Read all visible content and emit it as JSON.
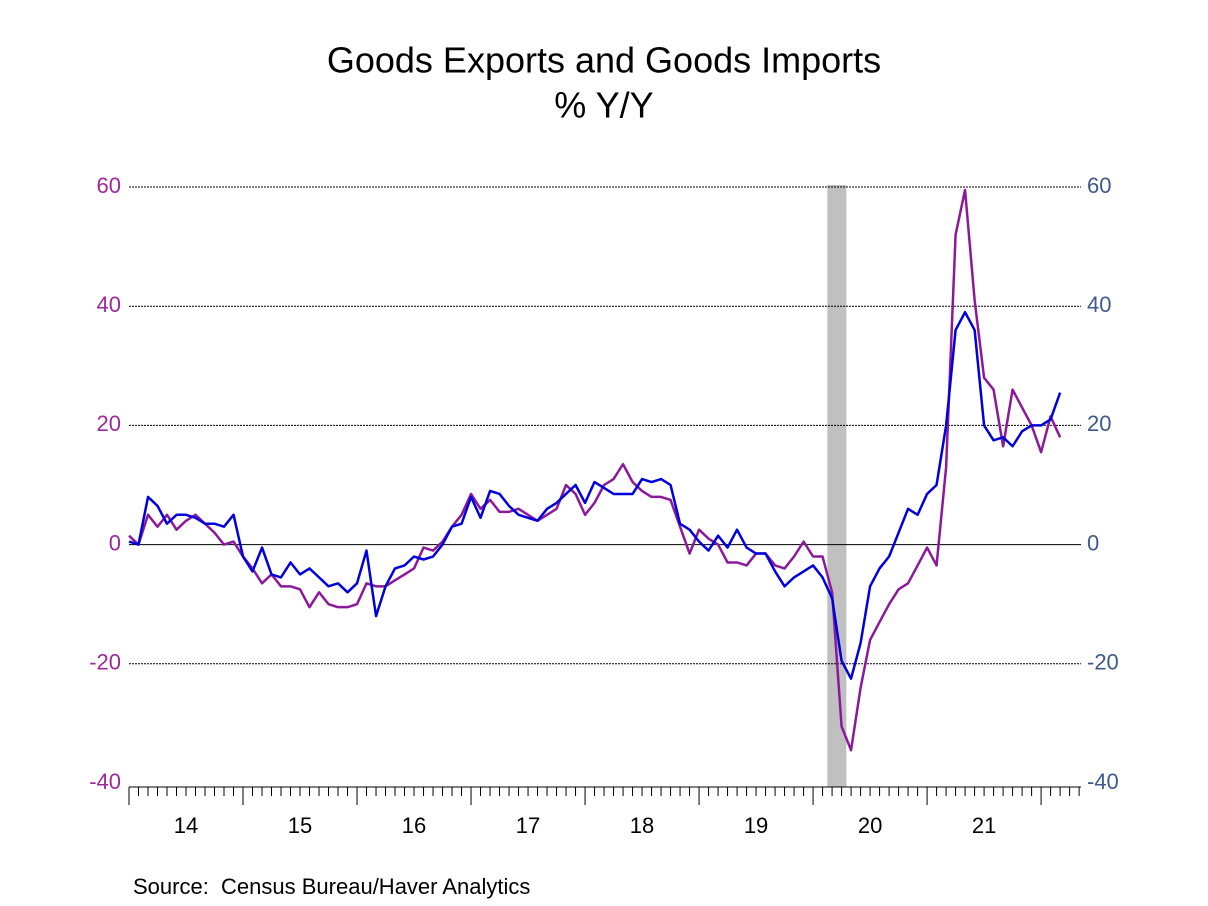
{
  "chart_data": {
    "type": "line",
    "title": "Goods Exports and Goods Imports",
    "subtitle": "% Y/Y",
    "source": "Source:  Census Bureau/Haver Analytics",
    "x": [
      2014.0,
      2014.083,
      2014.167,
      2014.25,
      2014.333,
      2014.417,
      2014.5,
      2014.583,
      2014.667,
      2014.75,
      2014.833,
      2014.917,
      2015.0,
      2015.083,
      2015.167,
      2015.25,
      2015.333,
      2015.417,
      2015.5,
      2015.583,
      2015.667,
      2015.75,
      2015.833,
      2015.917,
      2016.0,
      2016.083,
      2016.167,
      2016.25,
      2016.333,
      2016.417,
      2016.5,
      2016.583,
      2016.667,
      2016.75,
      2016.833,
      2016.917,
      2017.0,
      2017.083,
      2017.167,
      2017.25,
      2017.333,
      2017.417,
      2017.5,
      2017.583,
      2017.667,
      2017.75,
      2017.833,
      2017.917,
      2018.0,
      2018.083,
      2018.167,
      2018.25,
      2018.333,
      2018.417,
      2018.5,
      2018.583,
      2018.667,
      2018.75,
      2018.833,
      2018.917,
      2019.0,
      2019.083,
      2019.167,
      2019.25,
      2019.333,
      2019.417,
      2019.5,
      2019.583,
      2019.667,
      2019.75,
      2019.833,
      2019.917,
      2020.0,
      2020.083,
      2020.167,
      2020.25,
      2020.333,
      2020.417,
      2020.5,
      2020.583,
      2020.667,
      2020.75,
      2020.833,
      2020.917,
      2021.0,
      2021.083,
      2021.167,
      2021.25,
      2021.333,
      2021.417,
      2021.5,
      2021.583,
      2021.667,
      2021.75,
      2021.833,
      2021.917,
      2022.0,
      2022.083,
      2022.167
    ],
    "series": [
      {
        "color": "#8b1a9a",
        "values": [
          1.5,
          0,
          5,
          3,
          5,
          2.5,
          4,
          5,
          3.5,
          2,
          0,
          0.5,
          -2,
          -4,
          -6.5,
          -5,
          -7,
          -7,
          -7.5,
          -10.5,
          -8,
          -10,
          -10.5,
          -10.5,
          -10,
          -6.5,
          -7,
          -7,
          -6,
          -5,
          -4,
          -0.5,
          -1,
          0.5,
          3,
          5,
          8.5,
          6,
          7.5,
          5.5,
          5.5,
          6,
          5,
          4,
          5,
          6,
          10,
          8.5,
          5,
          7,
          10,
          11,
          13.5,
          10.5,
          9,
          8,
          8,
          7.5,
          3,
          -1.5,
          2.5,
          1,
          0,
          -3,
          -3,
          -3.5,
          -1.5,
          -1.5,
          -3.5,
          -4,
          -2,
          0.5,
          -2,
          -2,
          -8,
          -30.5,
          -34.5,
          -24,
          -16,
          -13,
          -10,
          -7.5,
          -6.5,
          -3.5,
          -0.5,
          -3.5,
          13,
          52,
          59.5,
          41,
          28,
          26,
          16.5,
          26,
          23,
          20,
          15.5,
          21.5,
          18
        ]
      },
      {
        "color": "#0000dd",
        "axis": "y2",
        "values": [
          0.5,
          0,
          8,
          6.5,
          3.5,
          5,
          5,
          4.5,
          3.5,
          3.5,
          3,
          5,
          -2,
          -4.5,
          -0.5,
          -5,
          -5.5,
          -3,
          -5,
          -4,
          -5.5,
          -7,
          -6.5,
          -8,
          -6.5,
          -1,
          -12,
          -7,
          -4,
          -3.5,
          -2,
          -2.5,
          -2,
          0,
          3,
          3.5,
          8,
          4.5,
          9,
          8.5,
          6.5,
          5,
          4.5,
          4,
          6,
          7,
          8.5,
          10,
          7,
          10.5,
          9.5,
          8.5,
          8.5,
          8.5,
          11,
          10.5,
          11,
          10,
          3.5,
          2.5,
          0.5,
          -1,
          1.5,
          -0.5,
          2.5,
          -0.5,
          -1.5,
          -1.5,
          -4.5,
          -7,
          -5.5,
          -4.5,
          -3.5,
          -5.5,
          -9,
          -19.5,
          -22.5,
          -16.5,
          -7,
          -4,
          -2,
          2,
          6,
          5,
          8.5,
          10,
          20,
          36,
          39,
          36,
          20,
          17.5,
          18,
          16.5,
          19,
          20,
          20,
          21,
          25.5
        ]
      }
    ],
    "shaded_period": [
      2020.125,
      2020.292
    ],
    "xlim": [
      2014,
      2022.35
    ],
    "xticks": [
      {
        "value": 2014.5,
        "label": "14"
      },
      {
        "value": 2015.5,
        "label": "15"
      },
      {
        "value": 2016.5,
        "label": "16"
      },
      {
        "value": 2017.5,
        "label": "17"
      },
      {
        "value": 2018.5,
        "label": "18"
      },
      {
        "value": 2019.5,
        "label": "19"
      },
      {
        "value": 2020.5,
        "label": "20"
      },
      {
        "value": 2021.5,
        "label": "21"
      }
    ],
    "ylim": [
      -40,
      60
    ],
    "yticks": [
      -40,
      -20,
      0,
      20,
      40,
      60
    ],
    "y2lim": [
      -40,
      60
    ],
    "y2ticks": [
      -40,
      -20,
      0,
      20,
      40,
      60
    ],
    "grid": true
  }
}
